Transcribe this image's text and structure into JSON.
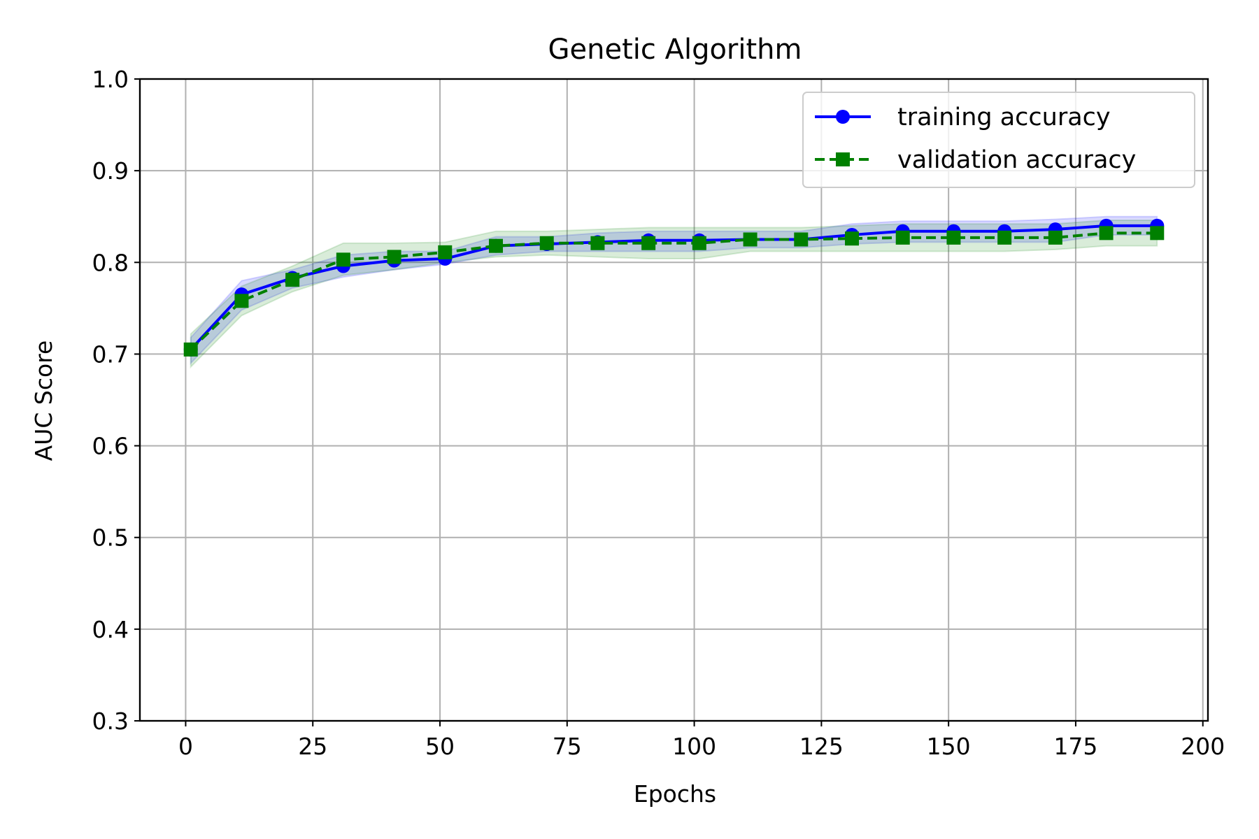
{
  "chart_data": {
    "type": "line",
    "title": "Genetic Algorithm",
    "xlabel": "Epochs",
    "ylabel": "AUC Score",
    "xlim": [
      -9,
      201
    ],
    "ylim": [
      0.3,
      1.0
    ],
    "xticks": [
      0,
      25,
      50,
      75,
      100,
      125,
      150,
      175,
      200
    ],
    "yticks": [
      0.3,
      0.4,
      0.5,
      0.6,
      0.7,
      0.8,
      0.9,
      1.0
    ],
    "xtick_labels": [
      "0",
      "25",
      "50",
      "75",
      "100",
      "125",
      "150",
      "175",
      "200"
    ],
    "ytick_labels": [
      "0.3",
      "0.4",
      "0.5",
      "0.6",
      "0.7",
      "0.8",
      "0.9",
      "1.0"
    ],
    "grid": true,
    "legend_position": "top-right",
    "x": [
      1,
      11,
      21,
      31,
      41,
      51,
      61,
      71,
      81,
      91,
      101,
      111,
      121,
      131,
      141,
      151,
      161,
      171,
      181,
      191
    ],
    "series": [
      {
        "name": "training accuracy",
        "color": "#0000ff",
        "marker": "circle",
        "linestyle": "solid",
        "values": [
          0.705,
          0.765,
          0.783,
          0.796,
          0.802,
          0.804,
          0.818,
          0.82,
          0.822,
          0.824,
          0.824,
          0.825,
          0.825,
          0.83,
          0.834,
          0.834,
          0.834,
          0.836,
          0.84,
          0.84
        ],
        "band_lower": [
          0.69,
          0.748,
          0.772,
          0.784,
          0.792,
          0.798,
          0.808,
          0.812,
          0.812,
          0.812,
          0.812,
          0.816,
          0.816,
          0.82,
          0.822,
          0.822,
          0.822,
          0.822,
          0.83,
          0.83
        ],
        "band_upper": [
          0.718,
          0.78,
          0.792,
          0.808,
          0.812,
          0.812,
          0.828,
          0.828,
          0.832,
          0.834,
          0.834,
          0.834,
          0.834,
          0.842,
          0.845,
          0.845,
          0.845,
          0.847,
          0.85,
          0.85
        ]
      },
      {
        "name": "validation accuracy",
        "color": "#008000",
        "marker": "square",
        "linestyle": "dashed",
        "values": [
          0.705,
          0.758,
          0.781,
          0.803,
          0.806,
          0.811,
          0.818,
          0.821,
          0.821,
          0.821,
          0.821,
          0.825,
          0.825,
          0.826,
          0.827,
          0.827,
          0.827,
          0.827,
          0.832,
          0.832
        ],
        "band_lower": [
          0.686,
          0.742,
          0.768,
          0.786,
          0.792,
          0.8,
          0.806,
          0.808,
          0.806,
          0.804,
          0.804,
          0.812,
          0.812,
          0.812,
          0.812,
          0.812,
          0.812,
          0.814,
          0.818,
          0.818
        ],
        "band_upper": [
          0.722,
          0.774,
          0.796,
          0.821,
          0.821,
          0.822,
          0.834,
          0.834,
          0.836,
          0.838,
          0.838,
          0.838,
          0.838,
          0.84,
          0.842,
          0.842,
          0.842,
          0.842,
          0.846,
          0.846
        ]
      }
    ]
  }
}
